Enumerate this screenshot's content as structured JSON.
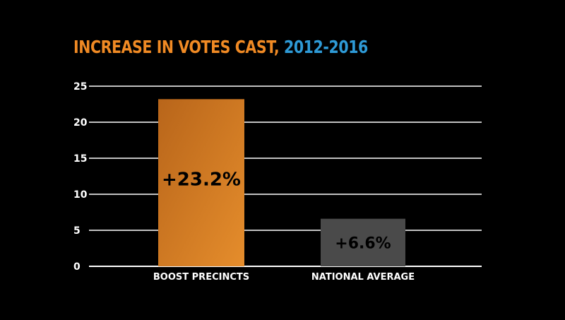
{
  "chart_data": {
    "type": "bar",
    "title_main": "INCREASE IN VOTES CAST,",
    "title_years": "2012-2016",
    "categories": [
      "BOOST PRECINCTS",
      "NATIONAL AVERAGE"
    ],
    "values": [
      23.2,
      6.6
    ],
    "data_labels": [
      "+23.2%",
      "+6.6%"
    ],
    "ylim": [
      0,
      25
    ],
    "yticks": [
      0,
      5,
      10,
      15,
      20,
      25
    ],
    "grid": true,
    "legend": "none",
    "colors": {
      "background": "#000000",
      "title_main": "#f08a24",
      "title_years": "#2e9ad6",
      "bar_boost_top": "#c8711d",
      "bar_boost_bottom": "#e08a2a",
      "bar_national": "#4a4a4a",
      "grid": "#ffffff"
    }
  }
}
